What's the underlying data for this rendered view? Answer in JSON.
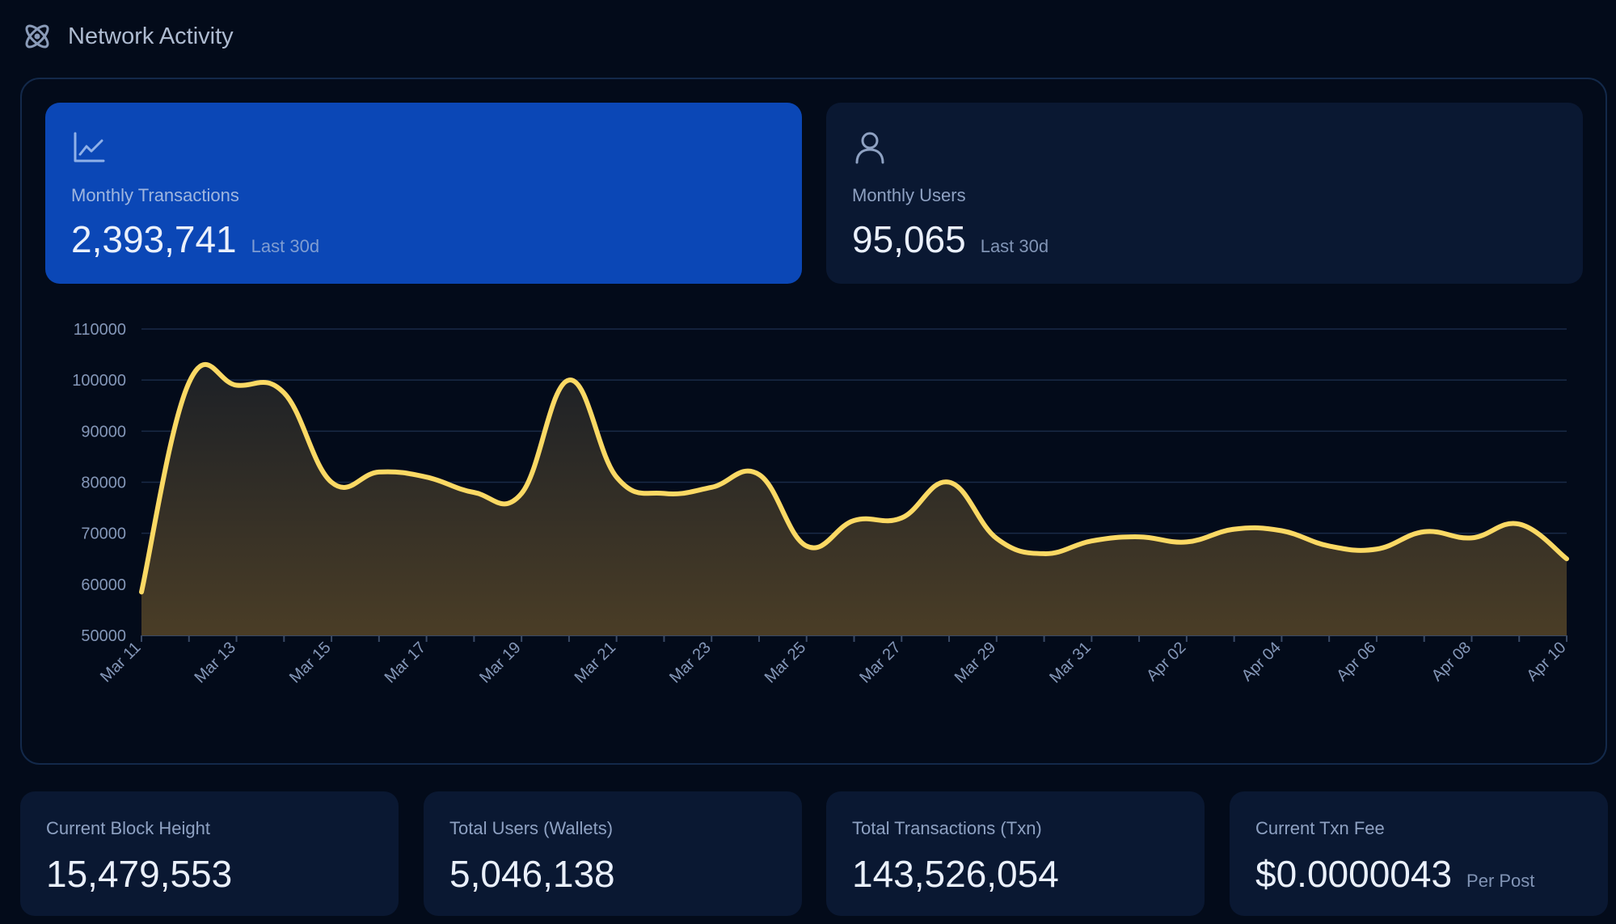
{
  "header": {
    "title": "Network Activity",
    "icon": "atom-icon"
  },
  "stats": [
    {
      "icon": "line-chart-icon",
      "label": "Monthly Transactions",
      "value": "2,393,741",
      "sub": "Last 30d",
      "active": true
    },
    {
      "icon": "user-icon",
      "label": "Monthly Users",
      "value": "95,065",
      "sub": "Last 30d",
      "active": false
    }
  ],
  "colors": {
    "accent": "#0b47b6",
    "line": "#fbd964",
    "background": "#030b1a",
    "card": "#0a1832"
  },
  "chart_data": {
    "type": "area",
    "ylim": [
      50000,
      110000
    ],
    "yticks": [
      "110000",
      "100000",
      "90000",
      "80000",
      "70000",
      "60000",
      "50000"
    ],
    "xticks": [
      "Mar 11",
      "Mar 13",
      "Mar 15",
      "Mar 17",
      "Mar 19",
      "Mar 21",
      "Mar 23",
      "Mar 25",
      "Mar 27",
      "Mar 29",
      "Mar 31",
      "Apr 02",
      "Apr 04",
      "Apr 06",
      "Apr 08",
      "Apr 10"
    ],
    "x": [
      "Mar 11",
      "Mar 12",
      "Mar 13",
      "Mar 14",
      "Mar 15",
      "Mar 16",
      "Mar 17",
      "Mar 18",
      "Mar 19",
      "Mar 20",
      "Mar 21",
      "Mar 22",
      "Mar 23",
      "Mar 24",
      "Mar 25",
      "Mar 26",
      "Mar 27",
      "Mar 28",
      "Mar 29",
      "Mar 30",
      "Mar 31",
      "Apr 01",
      "Apr 02",
      "Apr 03",
      "Apr 04",
      "Apr 05",
      "Apr 06",
      "Apr 07",
      "Apr 08",
      "Apr 09",
      "Apr 10"
    ],
    "series": [
      {
        "values": [
          58500,
          99500,
          99000,
          97500,
          80000,
          82000,
          81000,
          78000,
          77800,
          100000,
          81000,
          77800,
          79000,
          81500,
          67500,
          72500,
          73000,
          80000,
          69000,
          66000,
          68500,
          69300,
          68300,
          70800,
          70500,
          67500,
          66900,
          70300,
          69100,
          71800,
          65000
        ]
      }
    ],
    "grid": true
  },
  "bottom": [
    {
      "label": "Current Block Height",
      "value": "15,479,553",
      "unit": ""
    },
    {
      "label": "Total Users (Wallets)",
      "value": "5,046,138",
      "unit": ""
    },
    {
      "label": "Total Transactions (Txn)",
      "value": "143,526,054",
      "unit": ""
    },
    {
      "label": "Current Txn Fee",
      "value": "$0.0000043",
      "unit": "Per Post"
    }
  ]
}
